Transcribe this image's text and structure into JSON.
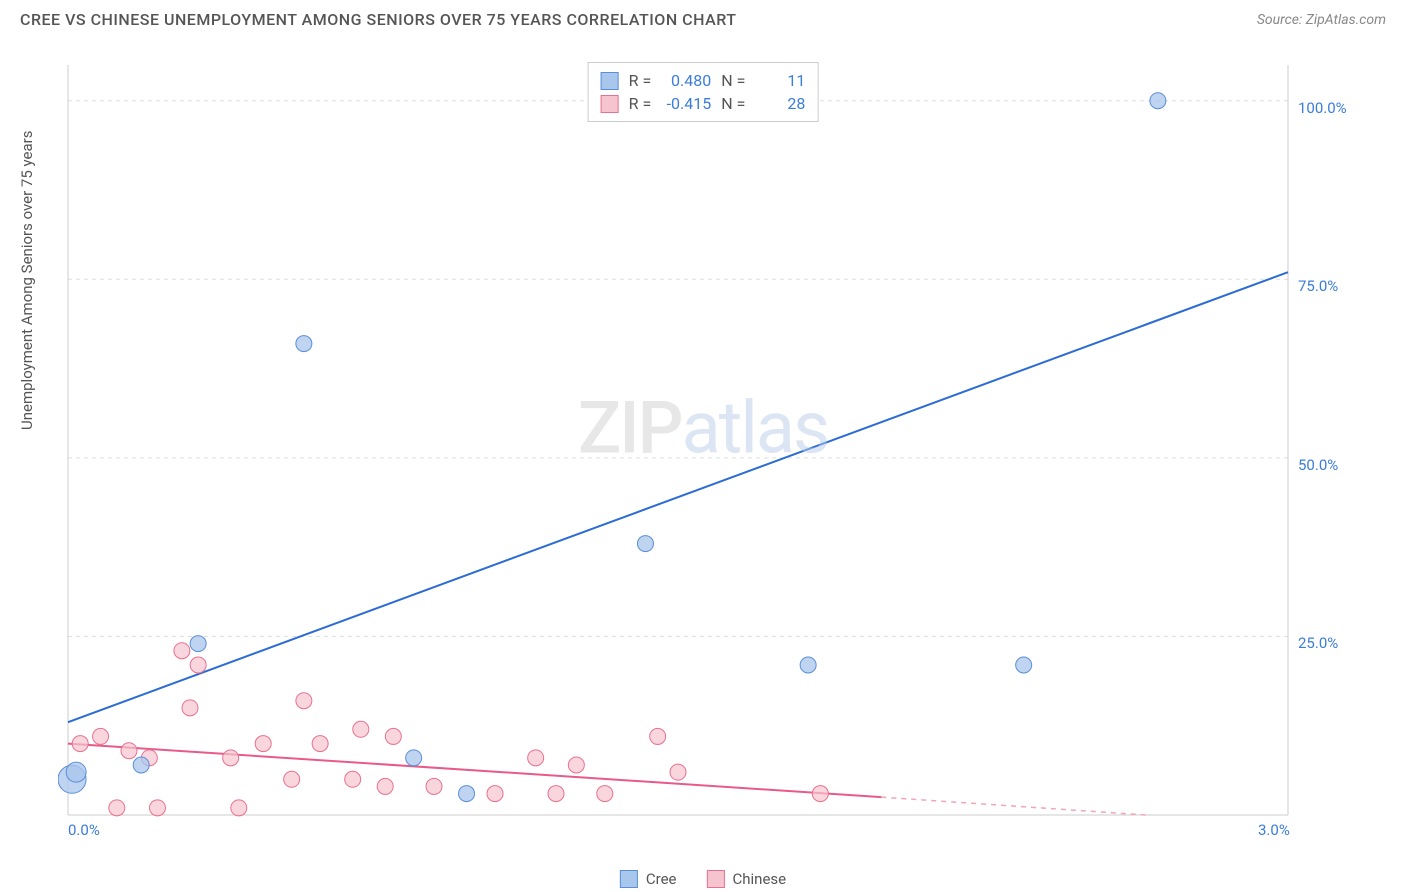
{
  "header": {
    "title": "CREE VS CHINESE UNEMPLOYMENT AMONG SENIORS OVER 75 YEARS CORRELATION CHART",
    "source": "Source: ZipAtlas.com"
  },
  "y_axis_label": "Unemployment Among Seniors over 75 years",
  "watermark": {
    "part1": "ZIP",
    "part2": "atlas"
  },
  "chart": {
    "type": "scatter",
    "xlim": [
      0,
      3.0
    ],
    "ylim": [
      0,
      105
    ],
    "x_ticks": [
      {
        "val": 0.0,
        "label": "0.0%"
      },
      {
        "val": 3.0,
        "label": "3.0%"
      }
    ],
    "y_ticks": [
      {
        "val": 25,
        "label": "25.0%"
      },
      {
        "val": 50,
        "label": "50.0%"
      },
      {
        "val": 75,
        "label": "75.0%"
      },
      {
        "val": 100,
        "label": "100.0%"
      }
    ],
    "y_gridlines": [
      25,
      50,
      75,
      100
    ],
    "background_color": "#ffffff",
    "grid_color": "#dddddd",
    "grid_dash": "4,4",
    "axis_color": "#cccccc",
    "series": {
      "cree": {
        "label": "Cree",
        "color_fill": "#a9c6ec",
        "color_stroke": "#5a8fd6",
        "marker_r": 8,
        "stats": {
          "R": "0.480",
          "N": "11"
        },
        "points": [
          {
            "x": 0.01,
            "y": 5,
            "r": 14
          },
          {
            "x": 0.02,
            "y": 6,
            "r": 10
          },
          {
            "x": 0.18,
            "y": 7,
            "r": 8
          },
          {
            "x": 0.32,
            "y": 24,
            "r": 8
          },
          {
            "x": 0.58,
            "y": 66,
            "r": 8
          },
          {
            "x": 0.85,
            "y": 8,
            "r": 8
          },
          {
            "x": 0.98,
            "y": 3,
            "r": 8
          },
          {
            "x": 1.42,
            "y": 38,
            "r": 8
          },
          {
            "x": 1.82,
            "y": 21,
            "r": 8
          },
          {
            "x": 2.35,
            "y": 21,
            "r": 8
          },
          {
            "x": 2.68,
            "y": 100,
            "r": 8
          }
        ],
        "trend": {
          "x1": 0.0,
          "y1": 13,
          "x2": 3.0,
          "y2": 76,
          "color": "#2b6cd4",
          "width": 2
        }
      },
      "chinese": {
        "label": "Chinese",
        "color_fill": "#f6c4cf",
        "color_stroke": "#e8718f",
        "marker_r": 8,
        "stats": {
          "R": "-0.415",
          "N": "28"
        },
        "points": [
          {
            "x": 0.03,
            "y": 10
          },
          {
            "x": 0.08,
            "y": 11
          },
          {
            "x": 0.12,
            "y": 1
          },
          {
            "x": 0.15,
            "y": 9
          },
          {
            "x": 0.2,
            "y": 8
          },
          {
            "x": 0.22,
            "y": 1
          },
          {
            "x": 0.28,
            "y": 23
          },
          {
            "x": 0.3,
            "y": 15
          },
          {
            "x": 0.32,
            "y": 21
          },
          {
            "x": 0.4,
            "y": 8
          },
          {
            "x": 0.42,
            "y": 1
          },
          {
            "x": 0.48,
            "y": 10
          },
          {
            "x": 0.55,
            "y": 5
          },
          {
            "x": 0.58,
            "y": 16
          },
          {
            "x": 0.62,
            "y": 10
          },
          {
            "x": 0.7,
            "y": 5
          },
          {
            "x": 0.72,
            "y": 12
          },
          {
            "x": 0.78,
            "y": 4
          },
          {
            "x": 0.8,
            "y": 11
          },
          {
            "x": 0.9,
            "y": 4
          },
          {
            "x": 1.05,
            "y": 3
          },
          {
            "x": 1.15,
            "y": 8
          },
          {
            "x": 1.2,
            "y": 3
          },
          {
            "x": 1.25,
            "y": 7
          },
          {
            "x": 1.32,
            "y": 3
          },
          {
            "x": 1.45,
            "y": 11
          },
          {
            "x": 1.5,
            "y": 6
          },
          {
            "x": 1.85,
            "y": 3
          }
        ],
        "trend_solid": {
          "x1": 0.0,
          "y1": 10,
          "x2": 2.0,
          "y2": 2.5,
          "color": "#e85a8a",
          "width": 2
        },
        "trend_dashed": {
          "x1": 2.0,
          "y1": 2.5,
          "x2": 2.65,
          "y2": 0,
          "color": "#f0a5b8",
          "width": 1.5,
          "dash": "5,5"
        }
      }
    }
  },
  "legend_stats": {
    "rows": [
      {
        "swatch_fill": "#a9c6ec",
        "swatch_stroke": "#5a8fd6",
        "r_label": "R =",
        "r_val": "0.480",
        "n_label": "N =",
        "n_val": "11"
      },
      {
        "swatch_fill": "#f6c4cf",
        "swatch_stroke": "#e8718f",
        "r_label": "R =",
        "r_val": "-0.415",
        "n_label": "N =",
        "n_val": "28"
      }
    ]
  },
  "bottom_legend": {
    "items": [
      {
        "fill": "#a9c6ec",
        "stroke": "#5a8fd6",
        "label": "Cree"
      },
      {
        "fill": "#f6c4cf",
        "stroke": "#e8718f",
        "label": "Chinese"
      }
    ]
  }
}
